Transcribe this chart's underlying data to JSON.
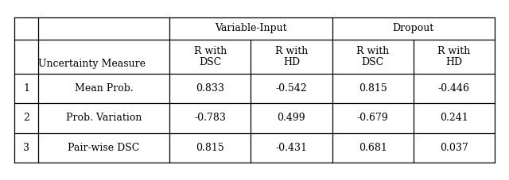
{
  "col_headers": [
    "R with\nDSC",
    "R with\nHD",
    "R with\nDSC",
    "R with\nHD"
  ],
  "group_headers": [
    "Variable-Input",
    "Dropout"
  ],
  "row_header_main": "Uncertainty Measure",
  "rows": [
    {
      "num": "1",
      "label": "Mean Prob.",
      "values": [
        "0.833",
        "-0.542",
        "0.815",
        "-0.446"
      ]
    },
    {
      "num": "2",
      "label": "Prob. Variation",
      "values": [
        "-0.783",
        "0.499",
        "-0.679",
        "0.241"
      ]
    },
    {
      "num": "3",
      "label": "Pair-wise DSC",
      "values": [
        "0.815",
        "-0.431",
        "0.681",
        "0.037"
      ]
    }
  ],
  "background_color": "#ffffff",
  "line_color": "#000000",
  "font_size": 9.0,
  "header_font_size": 9.0
}
